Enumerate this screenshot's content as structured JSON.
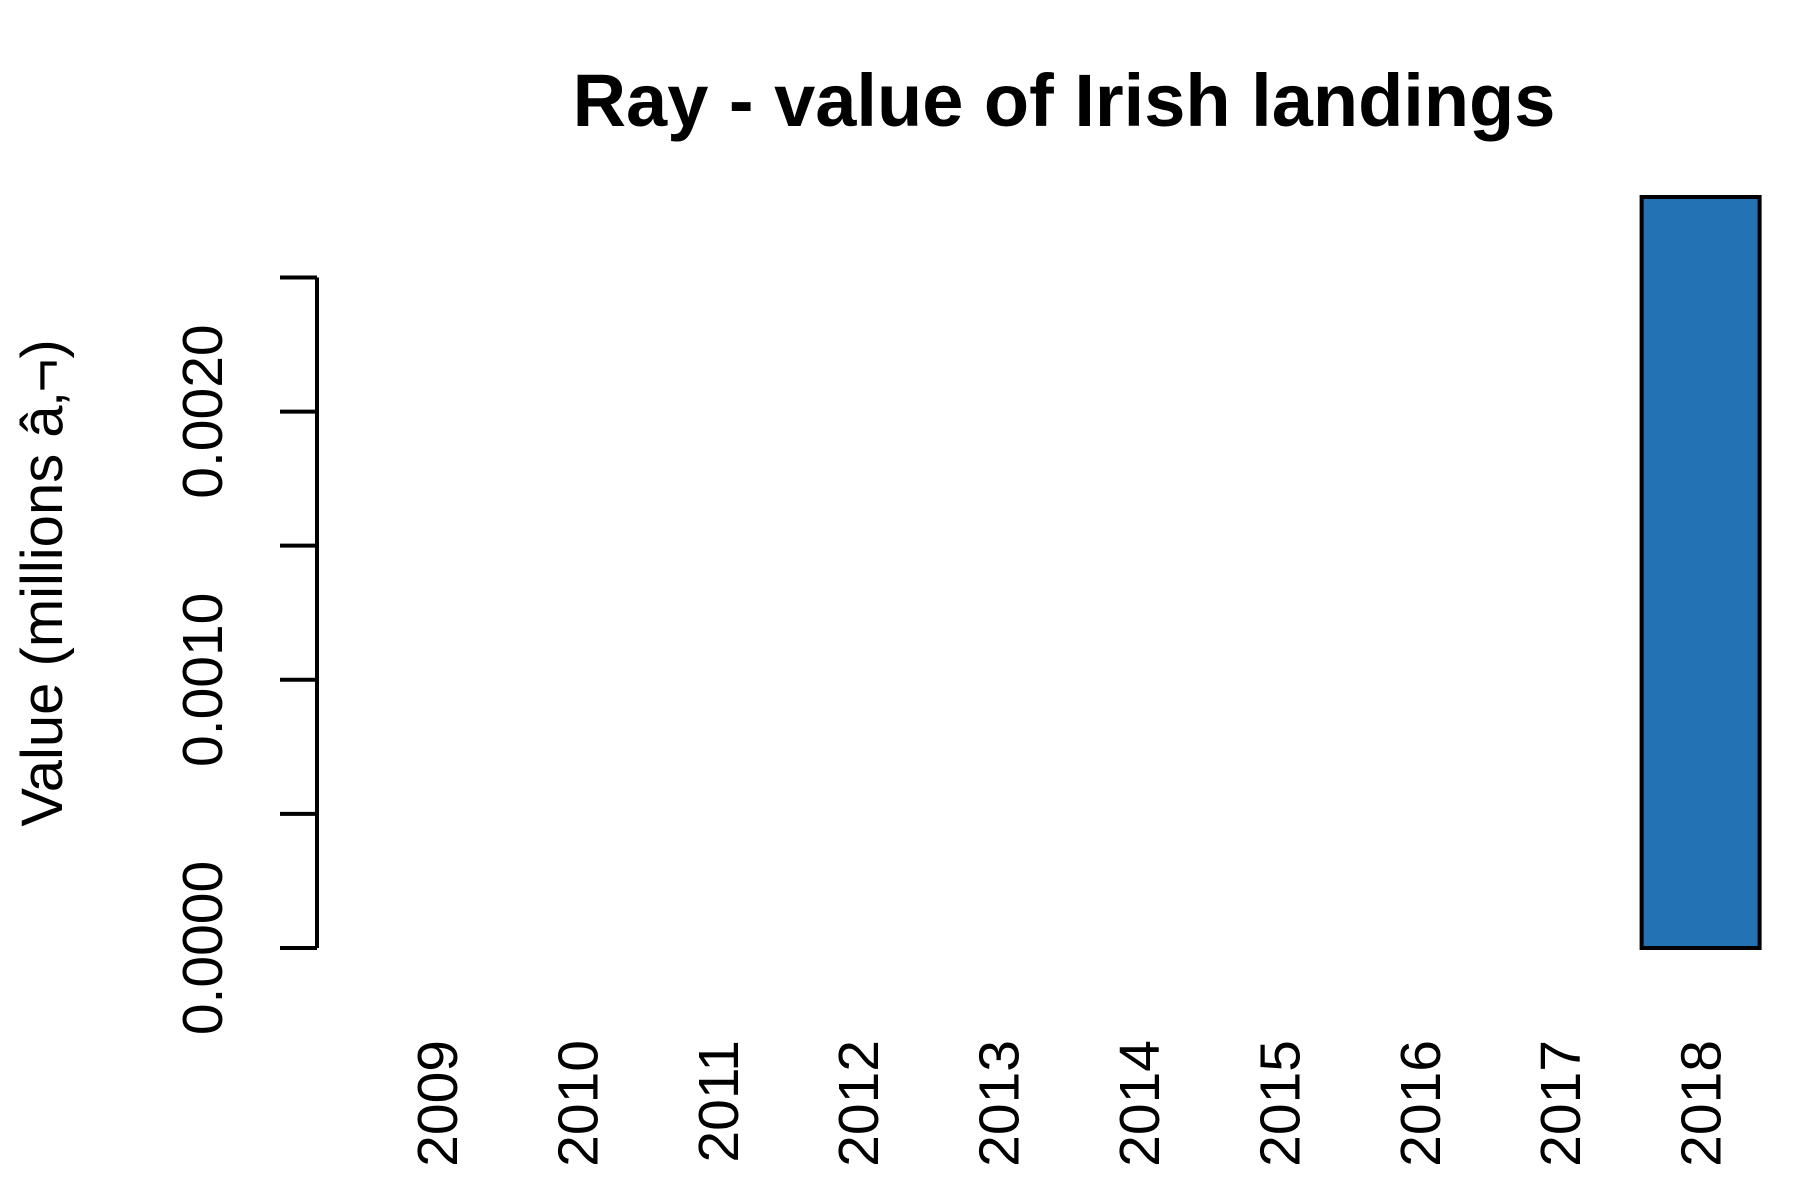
{
  "chart_data": {
    "type": "bar",
    "title": "Ray - value of Irish landings",
    "y_label": "Value (millions â‚¬)",
    "categories": [
      "2009",
      "2010",
      "2011",
      "2012",
      "2013",
      "2014",
      "2015",
      "2016",
      "2017",
      "2018"
    ],
    "values": [
      null,
      null,
      null,
      null,
      null,
      null,
      null,
      null,
      null,
      0.0028
    ],
    "color": "#2372b4",
    "ylim": [
      0,
      0.0028
    ],
    "yticks": [
      {
        "value": 0,
        "label": "0.0000"
      },
      {
        "value": 0.001,
        "label": "0.0010"
      },
      {
        "value": 0.002,
        "label": "0.0020"
      }
    ],
    "yticks_minor": [
      0.0005,
      0.0015,
      0.0025
    ],
    "grid": false
  }
}
